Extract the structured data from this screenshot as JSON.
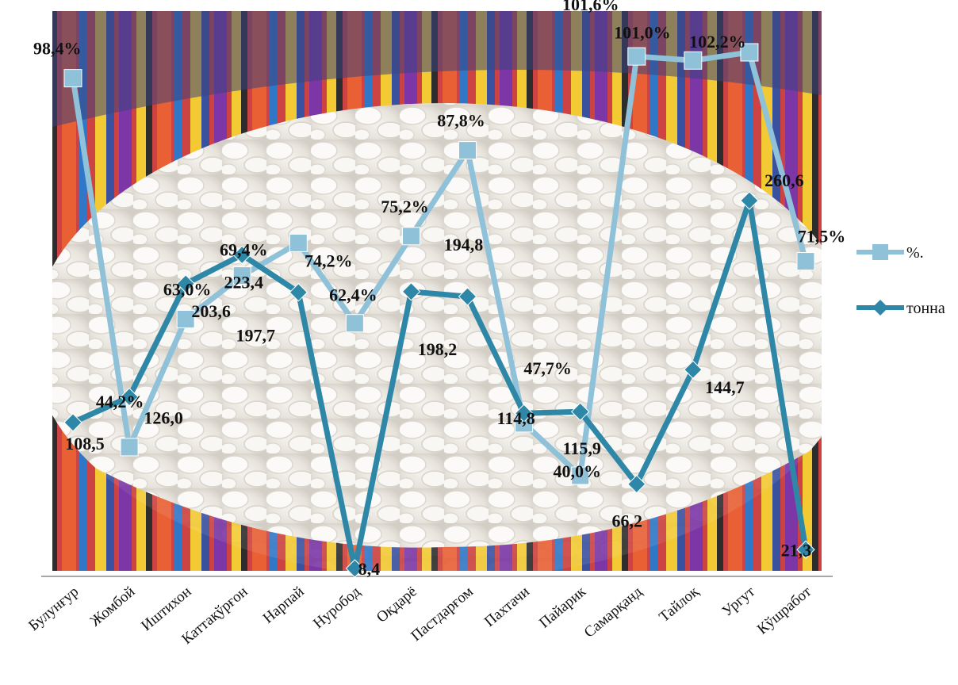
{
  "chart_data": {
    "type": "line",
    "categories": [
      "Булунғур",
      "Жомбой",
      "Иштихон",
      "Каттақўрғон",
      "Нарпай",
      "Нуробод",
      "Оқдарё",
      "Пастдарғом",
      "Пахтачи",
      "Пайарик",
      "Самарқанд",
      "Тайлоқ",
      "Ургут",
      "Кўшработ"
    ],
    "series": [
      {
        "name": "%.",
        "color": "#8fc1d9",
        "marker": "square",
        "values": [
          98.4,
          44.2,
          63.0,
          69.4,
          74.2,
          62.4,
          75.2,
          87.8,
          47.7,
          40.0,
          101.6,
          101.0,
          102.2,
          71.5
        ],
        "labels": [
          "98,4%",
          "44,2%",
          "63,0%",
          "69,4%",
          "74,2%",
          "62,4%",
          "75,2%",
          "87,8%",
          "47,7%",
          "40,0%",
          "101,6%",
          "101,0%",
          "102,2%",
          "71,5%"
        ]
      },
      {
        "name": "тонна",
        "color": "#2e87a6",
        "marker": "diamond",
        "values": [
          108.5,
          126.0,
          203.6,
          223.4,
          197.7,
          8.4,
          198.2,
          194.8,
          114.8,
          115.9,
          66.2,
          144.7,
          260.6,
          21.3
        ],
        "labels": [
          "108,5",
          "126,0",
          "203,6",
          "223,4",
          "197,7",
          "8,4",
          "198,2",
          "194,8",
          "114,8",
          "115,9",
          "66,2",
          "144,7",
          "260,6",
          "21,3"
        ]
      }
    ],
    "legend_position": "right",
    "background_photo": "silkworm-cocoons-in-ikat-fabric-bowl"
  }
}
